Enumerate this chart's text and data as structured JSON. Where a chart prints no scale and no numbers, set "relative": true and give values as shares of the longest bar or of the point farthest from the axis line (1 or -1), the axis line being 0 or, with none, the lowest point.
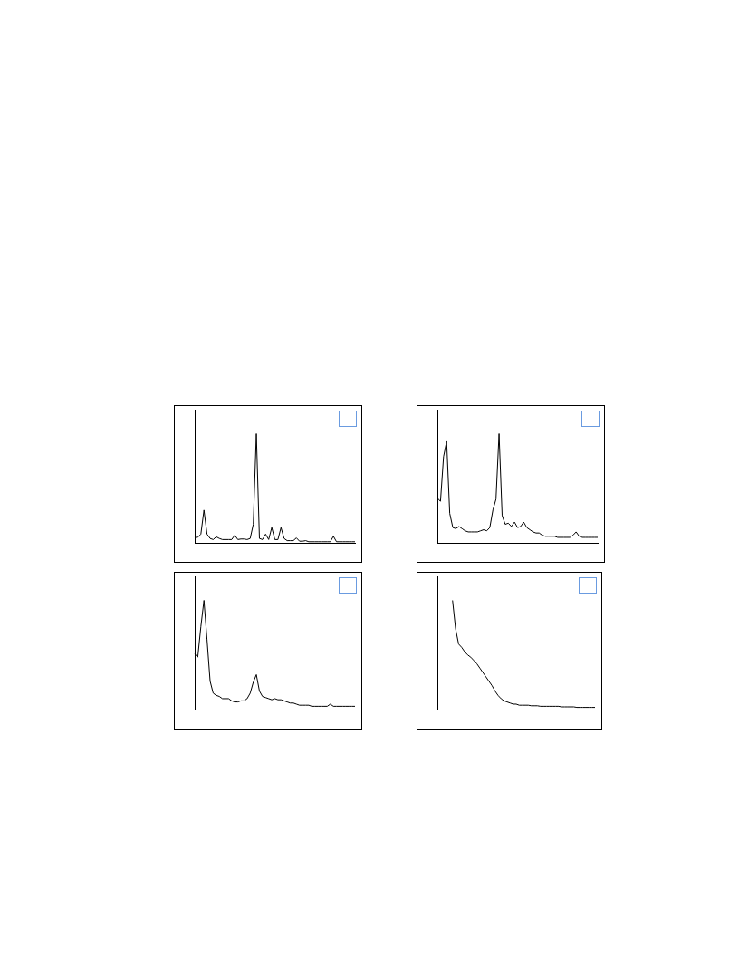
{
  "chart_data": [
    {
      "type": "line",
      "relative": true,
      "tick_labels": false,
      "grid": false,
      "legend": false,
      "marker": "none",
      "line_style": "solid",
      "categories": [
        null,
        null,
        null,
        null,
        null,
        null,
        null,
        null,
        null,
        null,
        null,
        null,
        null,
        null,
        null,
        null,
        null,
        null,
        null,
        null,
        null,
        null,
        null,
        null,
        null,
        null,
        null,
        null,
        null,
        null,
        null,
        null,
        null,
        null,
        null,
        null,
        null,
        null,
        null,
        null,
        null,
        null,
        null,
        null,
        null,
        null,
        null,
        null,
        null,
        null,
        null,
        null,
        null
      ],
      "series": [
        {
          "color": "#000000",
          "values": [
            0.05,
            0.05,
            0.08,
            0.3,
            0.08,
            0.04,
            0.03,
            0.055,
            0.04,
            0.03,
            0.03,
            0.03,
            0.03,
            0.07,
            0.03,
            0.035,
            0.035,
            0.03,
            0.04,
            0.17,
            1.0,
            0.04,
            0.03,
            0.08,
            0.03,
            0.14,
            0.03,
            0.03,
            0.14,
            0.04,
            0.02,
            0.02,
            0.02,
            0.045,
            0.015,
            0.015,
            0.02,
            0.01,
            0.01,
            0.01,
            0.01,
            0.01,
            0.01,
            0.01,
            0.01,
            0.06,
            0.01,
            0.01,
            0.01,
            0.01,
            0.01,
            0.01,
            0.01
          ]
        }
      ]
    },
    {
      "type": "line",
      "relative": true,
      "tick_labels": false,
      "grid": false,
      "legend": false,
      "marker": "none",
      "line_style": "solid",
      "categories": [
        null,
        null,
        null,
        null,
        null,
        null,
        null,
        null,
        null,
        null,
        null,
        null,
        null,
        null,
        null,
        null,
        null,
        null,
        null,
        null,
        null,
        null,
        null,
        null,
        null,
        null,
        null,
        null,
        null,
        null,
        null,
        null,
        null,
        null,
        null,
        null,
        null,
        null,
        null,
        null,
        null,
        null,
        null,
        null,
        null,
        null,
        null,
        null,
        null,
        null,
        null,
        null,
        null
      ],
      "series": [
        {
          "color": "#000000",
          "values": [
            0.41,
            0.38,
            0.79,
            0.93,
            0.27,
            0.14,
            0.13,
            0.15,
            0.13,
            0.11,
            0.1,
            0.1,
            0.1,
            0.1,
            0.11,
            0.12,
            0.11,
            0.14,
            0.3,
            0.4,
            1.0,
            0.25,
            0.17,
            0.18,
            0.15,
            0.19,
            0.14,
            0.15,
            0.19,
            0.14,
            0.12,
            0.1,
            0.09,
            0.09,
            0.07,
            0.06,
            0.06,
            0.06,
            0.06,
            0.05,
            0.05,
            0.05,
            0.05,
            0.05,
            0.07,
            0.1,
            0.06,
            0.05,
            0.05,
            0.05,
            0.05,
            0.05,
            0.05
          ]
        }
      ]
    },
    {
      "type": "line",
      "relative": true,
      "tick_labels": false,
      "grid": false,
      "legend": false,
      "marker": "none",
      "line_style": "solid",
      "categories": [
        null,
        null,
        null,
        null,
        null,
        null,
        null,
        null,
        null,
        null,
        null,
        null,
        null,
        null,
        null,
        null,
        null,
        null,
        null,
        null,
        null,
        null,
        null,
        null,
        null,
        null,
        null,
        null,
        null,
        null,
        null,
        null,
        null,
        null,
        null,
        null,
        null,
        null,
        null,
        null,
        null,
        null,
        null,
        null,
        null,
        null,
        null,
        null,
        null,
        null,
        null,
        null,
        null
      ],
      "series": [
        {
          "color": "#000000",
          "values": [
            0.51,
            0.48,
            0.76,
            1.0,
            0.64,
            0.26,
            0.15,
            0.13,
            0.12,
            0.1,
            0.1,
            0.1,
            0.08,
            0.07,
            0.07,
            0.08,
            0.08,
            0.1,
            0.15,
            0.25,
            0.32,
            0.17,
            0.12,
            0.11,
            0.1,
            0.09,
            0.1,
            0.09,
            0.09,
            0.08,
            0.07,
            0.06,
            0.06,
            0.05,
            0.04,
            0.04,
            0.04,
            0.04,
            0.03,
            0.03,
            0.03,
            0.03,
            0.03,
            0.03,
            0.05,
            0.03,
            0.03,
            0.03,
            0.03,
            0.03,
            0.03,
            0.03,
            0.03
          ]
        }
      ]
    },
    {
      "type": "line",
      "relative": true,
      "tick_labels": false,
      "grid": false,
      "legend": false,
      "marker": "none",
      "line_style": "solid",
      "categories": [
        null,
        null,
        null,
        null,
        null,
        null,
        null,
        null,
        null,
        null,
        null,
        null,
        null,
        null,
        null,
        null,
        null,
        null,
        null,
        null,
        null,
        null,
        null,
        null,
        null,
        null,
        null,
        null,
        null,
        null,
        null,
        null,
        null,
        null,
        null,
        null,
        null,
        null,
        null,
        null,
        null,
        null,
        null,
        null,
        null,
        null,
        null,
        null,
        null,
        null,
        null,
        null,
        null
      ],
      "series": [
        {
          "color": "#000000",
          "values": [
            null,
            null,
            null,
            null,
            null,
            1.0,
            0.74,
            0.6,
            0.57,
            0.53,
            0.5,
            0.48,
            0.45,
            0.42,
            0.38,
            0.34,
            0.3,
            0.26,
            0.22,
            0.17,
            0.13,
            0.1,
            0.08,
            0.07,
            0.06,
            0.05,
            0.05,
            0.04,
            0.04,
            0.04,
            0.04,
            0.035,
            0.035,
            0.035,
            0.03,
            0.03,
            0.03,
            0.03,
            0.03,
            0.03,
            0.03,
            0.025,
            0.025,
            0.025,
            0.025,
            0.025,
            0.02,
            0.02,
            0.02,
            0.02,
            0.02,
            0.02,
            0.02
          ]
        }
      ]
    }
  ]
}
